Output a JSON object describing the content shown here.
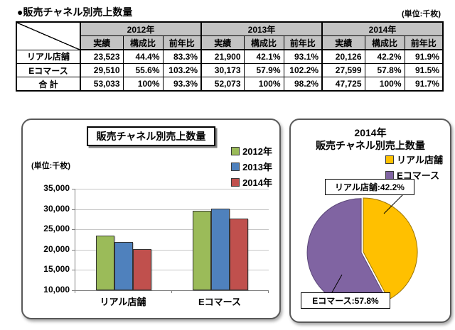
{
  "page": {
    "title": "●販売チャネル別売上数量",
    "unit_note": "(単位:千枚)"
  },
  "table": {
    "year_headers": [
      "2012年",
      "2013年",
      "2014年"
    ],
    "sub_headers": [
      "実績",
      "構成比",
      "前年比"
    ],
    "rows": [
      {
        "label": "リアル店舗",
        "values": [
          "23,523",
          "44.4%",
          "83.3%",
          "21,900",
          "42.1%",
          "93.1%",
          "20,126",
          "42.2%",
          "91.9%"
        ]
      },
      {
        "label": "Eコマース",
        "values": [
          "29,510",
          "55.6%",
          "103.2%",
          "30,173",
          "57.9%",
          "102.2%",
          "27,599",
          "57.8%",
          "91.5%"
        ]
      },
      {
        "label": "合 計",
        "values": [
          "53,033",
          "100%",
          "93.3%",
          "52,073",
          "100%",
          "98.2%",
          "47,725",
          "100%",
          "91.7%"
        ]
      }
    ]
  },
  "chart_data": [
    {
      "type": "bar",
      "title": "販売チャネル別売上数量",
      "unit_label": "(単位:千枚)",
      "categories": [
        "リアル店舗",
        "Eコマース"
      ],
      "series": [
        {
          "name": "2012年",
          "color": "#9BBB59",
          "values": [
            23523,
            29510
          ]
        },
        {
          "name": "2013年",
          "color": "#4F81BD",
          "values": [
            21900,
            30173
          ]
        },
        {
          "name": "2014年",
          "color": "#C0504D",
          "values": [
            20126,
            27599
          ]
        }
      ],
      "ylim": [
        10000,
        35000
      ],
      "yticks": [
        35000,
        30000,
        25000,
        20000,
        15000,
        10000
      ],
      "ytick_labels": [
        "35,000",
        "30,000",
        "25,000",
        "20,000",
        "15,000",
        "10,000"
      ],
      "grid": true,
      "legend_position": "top-right"
    },
    {
      "type": "pie",
      "title_line1": "2014年",
      "title_line2": "販売チャネル別売上数量",
      "legend_position": "top-right",
      "slices": [
        {
          "name": "リアル店舗",
          "value": 42.2,
          "color": "#FFC000",
          "edge_color": "#9C7400",
          "callout": "リアル店舗:42.2%"
        },
        {
          "name": "Eコマース",
          "value": 57.8,
          "color": "#8064A2",
          "edge_color": "#5B4778",
          "callout": "Eコマース:57.8%"
        }
      ]
    }
  ]
}
